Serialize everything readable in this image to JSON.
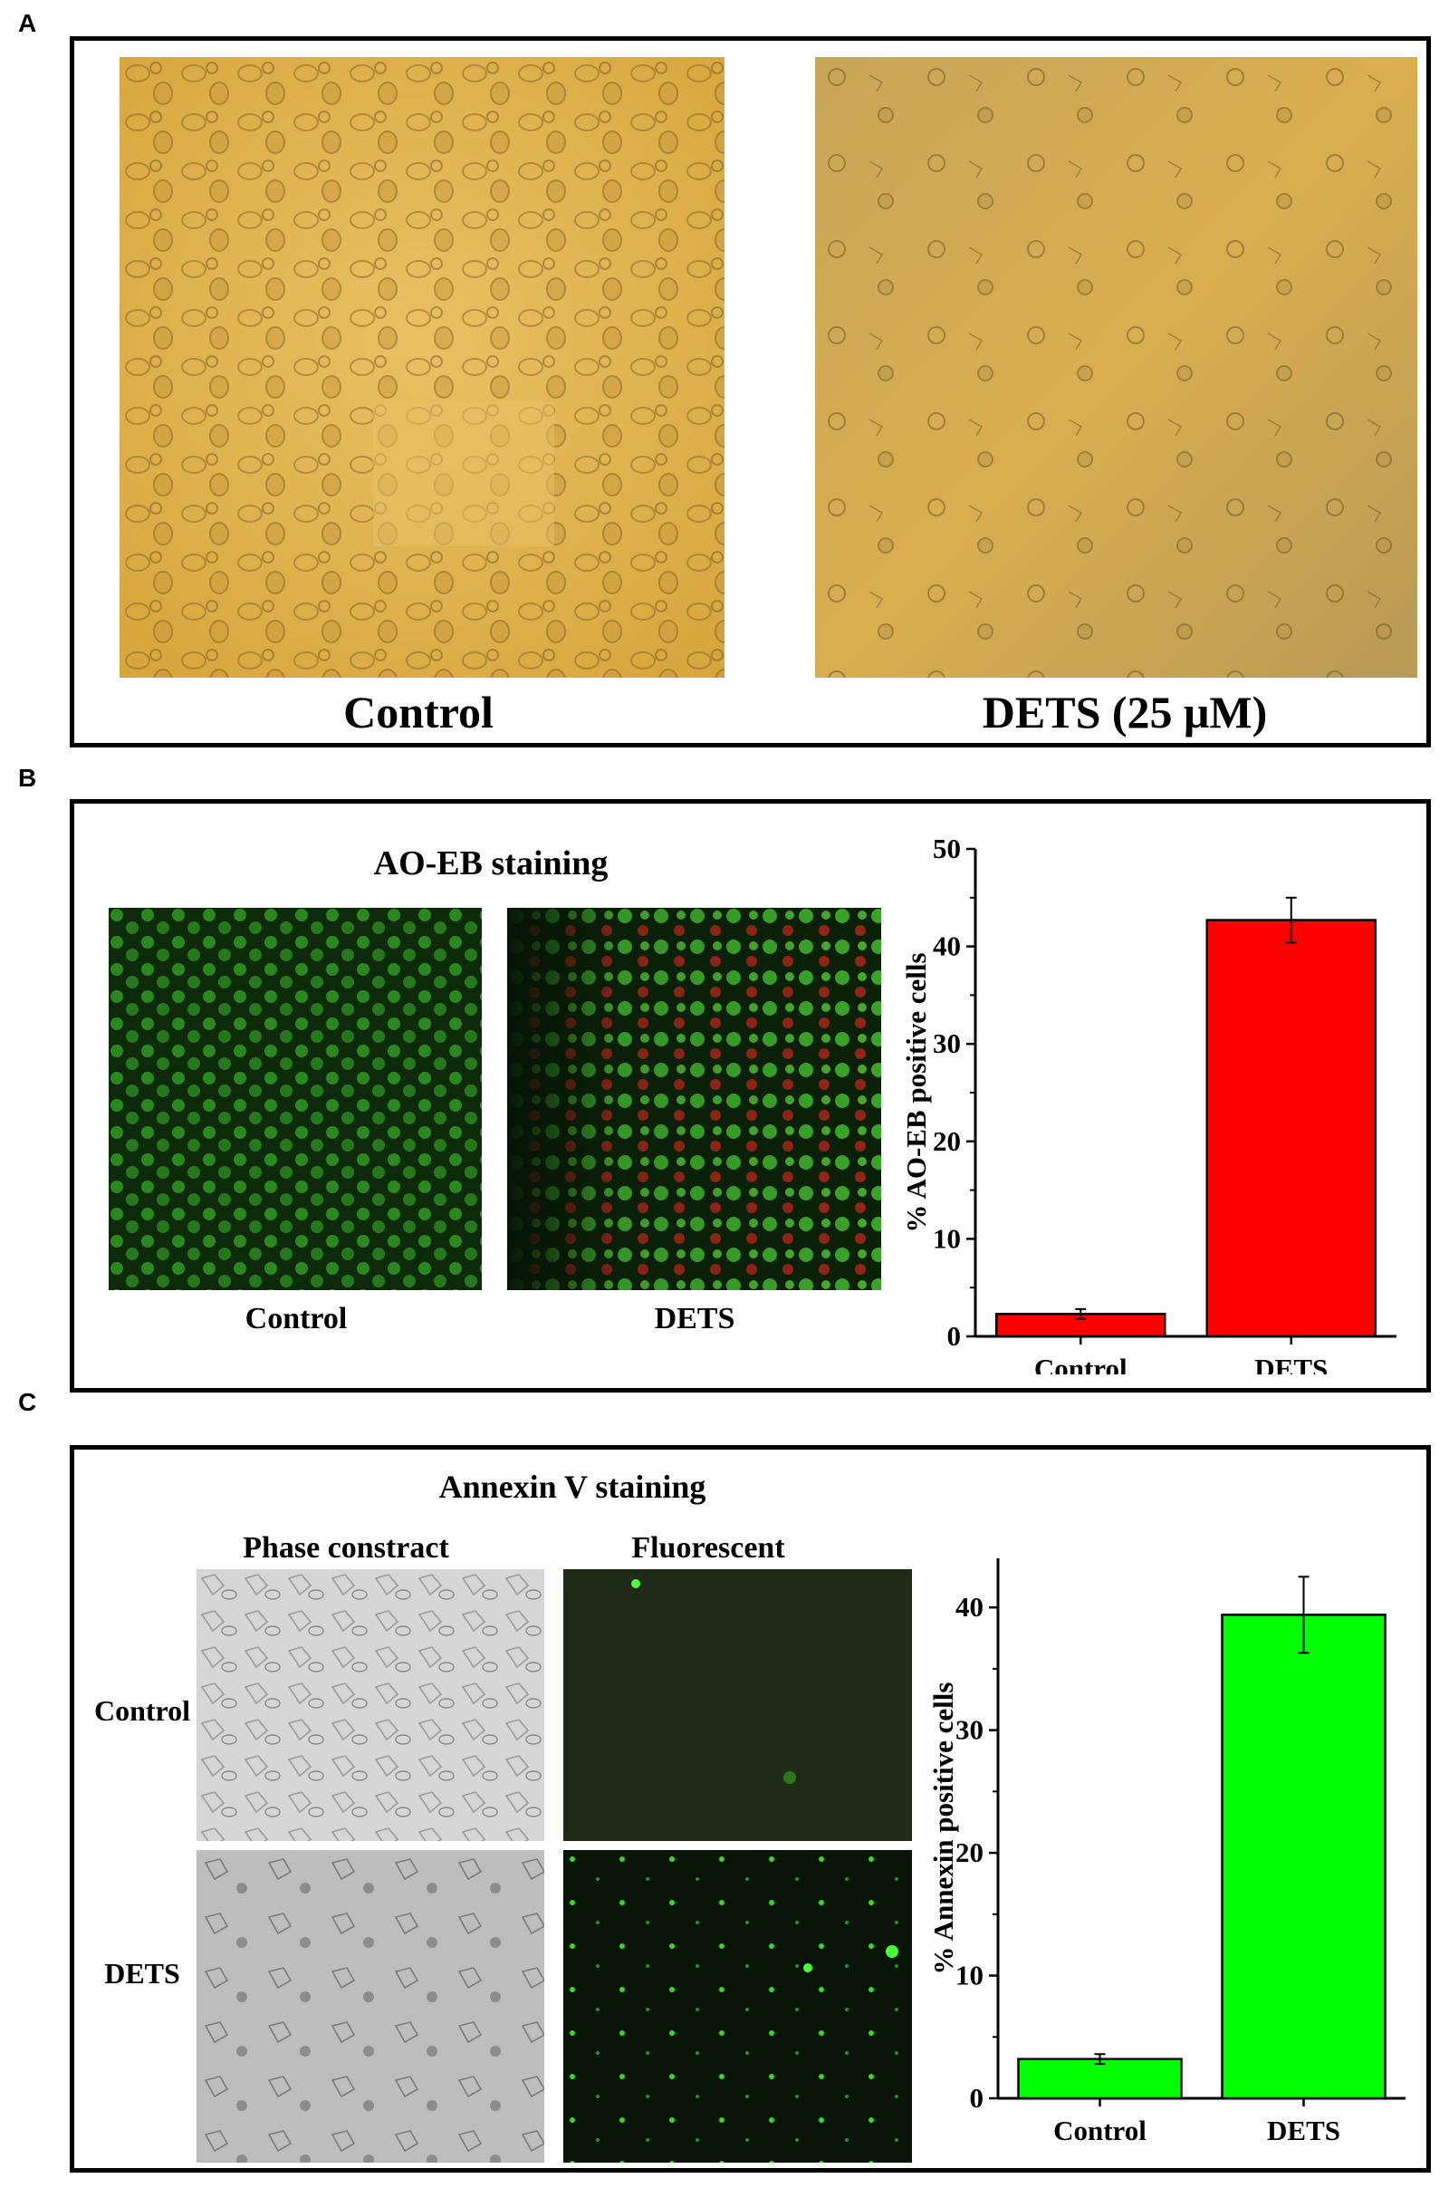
{
  "panels": {
    "a": {
      "letter": "A",
      "images": [
        {
          "label": "Control",
          "kind": "brightfield micrograph (yellow)"
        },
        {
          "label": "DETS (25 μM)",
          "kind": "brightfield micrograph (yellow)"
        }
      ]
    },
    "b": {
      "letter": "B",
      "title": "AO-EB staining",
      "images": [
        {
          "label": "Control",
          "kind": "fluorescence micrograph (green)"
        },
        {
          "label": "DETS",
          "kind": "fluorescence micrograph (green/red)"
        }
      ]
    },
    "c": {
      "letter": "C",
      "title": "Annexin V staining",
      "columns": [
        "Phase constract",
        "Fluorescent"
      ],
      "rows": [
        "Control",
        "DETS"
      ]
    }
  },
  "colors": {
    "aoeb_bar": "#ff0000",
    "annexin_bar": "#00ff00",
    "micro_yellow": "#e3b64a",
    "micro_green": "#1f7a1a"
  },
  "chart_data": [
    {
      "type": "bar",
      "categories": [
        "Control",
        "DETS"
      ],
      "values": [
        2.3,
        42.7
      ],
      "errors": [
        0.5,
        2.3
      ],
      "ylabel": "% AO-EB  positive cells",
      "yticks": [
        0,
        10,
        20,
        30,
        40,
        50
      ],
      "ylim": [
        0,
        50
      ],
      "color": "#ff0000"
    },
    {
      "type": "bar",
      "categories": [
        "Control",
        "DETS"
      ],
      "values": [
        3.2,
        39.4
      ],
      "errors": [
        0.4,
        3.1
      ],
      "ylabel": "% Annexin positive cells",
      "yticks": [
        0,
        10,
        20,
        30,
        40
      ],
      "ylim": [
        0,
        44
      ],
      "color": "#00ff00"
    }
  ]
}
